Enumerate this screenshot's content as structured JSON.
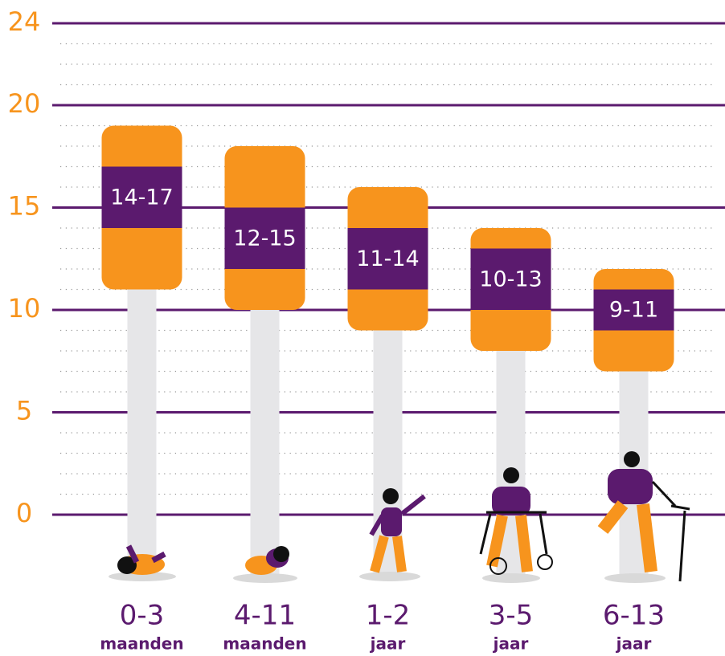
{
  "chart_data": {
    "type": "range-bar",
    "categories": [
      "0-3",
      "4-11",
      "1-2",
      "3-5",
      "6-13"
    ],
    "category_units": [
      "maanden",
      "maanden",
      "jaar",
      "jaar",
      "jaar"
    ],
    "series": [
      {
        "color": "#f7941d",
        "low": [
          11,
          10,
          9,
          8,
          7
        ],
        "high": [
          19,
          18,
          16,
          14,
          12
        ]
      },
      {
        "color": "#5b1a6e",
        "low": [
          14,
          12,
          11,
          10,
          9
        ],
        "high": [
          17,
          15,
          14,
          13,
          11
        ],
        "value_labels": [
          "14-17",
          "12-15",
          "11-14",
          "10-13",
          "9-11"
        ]
      }
    ],
    "stem_color": "#e6e6e8",
    "ylim": [
      -3,
      24
    ],
    "yticks": [
      0,
      5,
      10,
      15,
      20,
      24
    ],
    "minor_yticks": [
      1,
      2,
      3,
      4,
      6,
      7,
      8,
      9,
      11,
      12,
      13,
      14,
      16,
      17,
      18,
      19,
      21,
      22,
      23
    ],
    "grid": true,
    "grid_color": "#5b1a6e"
  }
}
